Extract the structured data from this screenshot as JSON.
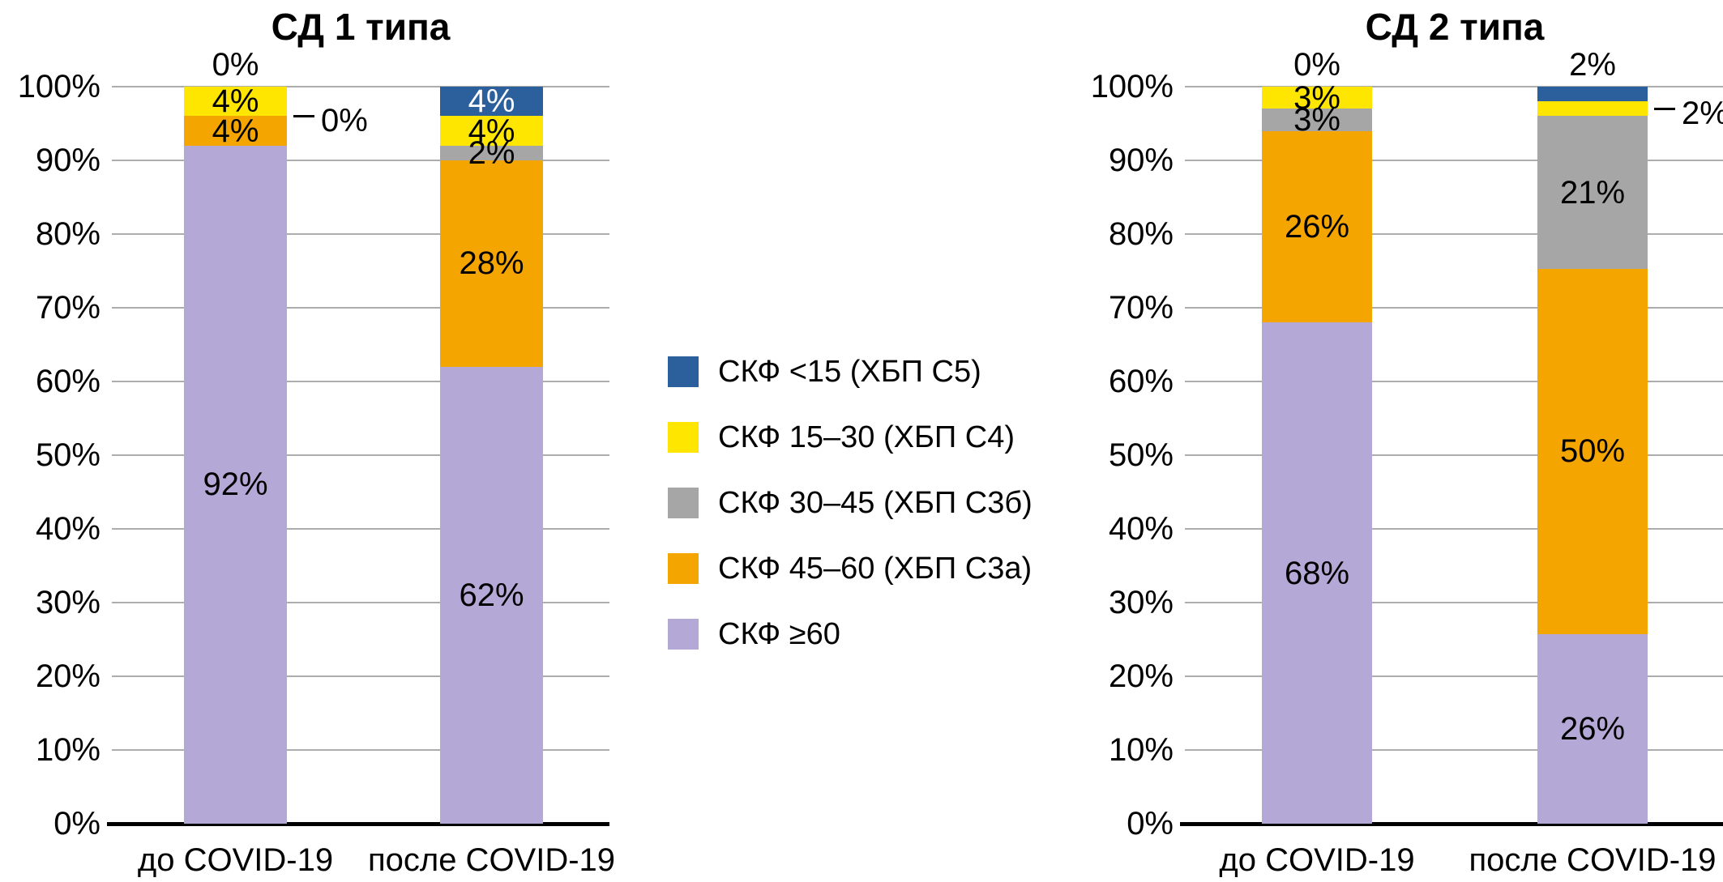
{
  "colors": {
    "blue": "#2B609D",
    "yellow": "#FFE600",
    "gray": "#A6A6A6",
    "orange": "#F5A500",
    "purple": "#B4A8D6",
    "gridline": "#ADADAD",
    "axis": "#000000",
    "label_dark": "#000000",
    "label_light": "#FFFFFF"
  },
  "y_axis": {
    "tick_labels": [
      "100%",
      "90%",
      "80%",
      "70%",
      "60%",
      "50%",
      "40%",
      "30%",
      "20%",
      "10%",
      "0%"
    ]
  },
  "legend": {
    "position": "center-between-charts",
    "items": [
      {
        "label": "СКФ <15 (ХБП С5)",
        "color_key": "blue"
      },
      {
        "label": "СКФ 15–30 (ХБП С4)",
        "color_key": "yellow"
      },
      {
        "label": "СКФ 30–45 (ХБП С3б)",
        "color_key": "gray"
      },
      {
        "label": "СКФ 45–60 (ХБП С3а)",
        "color_key": "orange"
      },
      {
        "label": "СКФ ≥60",
        "color_key": "purple"
      }
    ]
  },
  "chart_data": [
    {
      "type": "bar",
      "stacked": true,
      "title": "СД 1 типа",
      "categories": [
        "до COVID-19",
        "после COVID-19"
      ],
      "ylim": [
        0,
        100
      ],
      "grid": true,
      "series": [
        {
          "name": "СКФ ≥60",
          "color_key": "purple",
          "values": [
            92,
            62
          ]
        },
        {
          "name": "СКФ 45–60 (ХБП С3а)",
          "color_key": "orange",
          "values": [
            4,
            28
          ]
        },
        {
          "name": "СКФ 30–45 (ХБП С3б)",
          "color_key": "gray",
          "values": [
            0,
            2
          ]
        },
        {
          "name": "СКФ 15–30 (ХБП С4)",
          "color_key": "yellow",
          "values": [
            4,
            4
          ]
        },
        {
          "name": "СКФ <15 (ХБП С5)",
          "color_key": "blue",
          "values": [
            0,
            4
          ]
        }
      ],
      "bars": [
        {
          "category": "до COVID-19",
          "segments": [
            {
              "series": "СКФ ≥60",
              "color_key": "purple",
              "value": 92,
              "label": "92%",
              "label_placement": "inside",
              "label_color": "dark"
            },
            {
              "series": "СКФ 45–60 (ХБП С3а)",
              "color_key": "orange",
              "value": 4,
              "label": "4%",
              "label_placement": "inside",
              "label_color": "dark"
            },
            {
              "series": "СКФ 30–45 (ХБП С3б)",
              "color_key": "gray",
              "value": 0,
              "label": "0%",
              "label_placement": "callout-right",
              "label_color": "dark"
            },
            {
              "series": "СКФ 15–30 (ХБП С4)",
              "color_key": "yellow",
              "value": 4,
              "label": "4%",
              "label_placement": "inside",
              "label_color": "dark"
            },
            {
              "series": "СКФ <15 (ХБП С5)",
              "color_key": "blue",
              "value": 0,
              "label": "0%",
              "label_placement": "above",
              "label_color": "dark"
            }
          ]
        },
        {
          "category": "после COVID-19",
          "segments": [
            {
              "series": "СКФ ≥60",
              "color_key": "purple",
              "value": 62,
              "label": "62%",
              "label_placement": "inside",
              "label_color": "dark"
            },
            {
              "series": "СКФ 45–60 (ХБП С3а)",
              "color_key": "orange",
              "value": 28,
              "label": "28%",
              "label_placement": "inside",
              "label_color": "dark"
            },
            {
              "series": "СКФ 30–45 (ХБП С3б)",
              "color_key": "gray",
              "value": 2,
              "label": "2%",
              "label_placement": "inside",
              "label_color": "dark"
            },
            {
              "series": "СКФ 15–30 (ХБП С4)",
              "color_key": "yellow",
              "value": 4,
              "label": "4%",
              "label_placement": "inside",
              "label_color": "dark"
            },
            {
              "series": "СКФ <15 (ХБП С5)",
              "color_key": "blue",
              "value": 4,
              "label": "4%",
              "label_placement": "inside",
              "label_color": "light"
            }
          ]
        }
      ]
    },
    {
      "type": "bar",
      "stacked": true,
      "title": "СД 2 типа",
      "categories": [
        "до COVID-19",
        "после COVID-19"
      ],
      "ylim": [
        0,
        100
      ],
      "grid": true,
      "series": [
        {
          "name": "СКФ ≥60",
          "color_key": "purple",
          "values": [
            68,
            26
          ]
        },
        {
          "name": "СКФ 45–60 (ХБП С3а)",
          "color_key": "orange",
          "values": [
            26,
            50
          ]
        },
        {
          "name": "СКФ 30–45 (ХБП С3б)",
          "color_key": "gray",
          "values": [
            3,
            21
          ]
        },
        {
          "name": "СКФ 15–30 (ХБП С4)",
          "color_key": "yellow",
          "values": [
            3,
            2
          ]
        },
        {
          "name": "СКФ <15 (ХБП С5)",
          "color_key": "blue",
          "values": [
            0,
            2
          ]
        }
      ],
      "bars": [
        {
          "category": "до COVID-19",
          "segments": [
            {
              "series": "СКФ ≥60",
              "color_key": "purple",
              "value": 68,
              "label": "68%",
              "label_placement": "inside",
              "label_color": "dark"
            },
            {
              "series": "СКФ 45–60 (ХБП С3а)",
              "color_key": "orange",
              "value": 26,
              "label": "26%",
              "label_placement": "inside",
              "label_color": "dark"
            },
            {
              "series": "СКФ 30–45 (ХБП С3б)",
              "color_key": "gray",
              "value": 3,
              "label": "3%",
              "label_placement": "inside",
              "label_color": "dark"
            },
            {
              "series": "СКФ 15–30 (ХБП С4)",
              "color_key": "yellow",
              "value": 3,
              "label": "3%",
              "label_placement": "inside",
              "label_color": "dark"
            },
            {
              "series": "СКФ <15 (ХБП С5)",
              "color_key": "blue",
              "value": 0,
              "label": "0%",
              "label_placement": "above",
              "label_color": "dark"
            }
          ]
        },
        {
          "category": "после COVID-19",
          "segments": [
            {
              "series": "СКФ ≥60",
              "color_key": "purple",
              "value": 26,
              "label": "26%",
              "label_placement": "inside",
              "label_color": "dark"
            },
            {
              "series": "СКФ 45–60 (ХБП С3а)",
              "color_key": "orange",
              "value": 50,
              "label": "50%",
              "label_placement": "inside",
              "label_color": "dark"
            },
            {
              "series": "СКФ 30–45 (ХБП С3б)",
              "color_key": "gray",
              "value": 21,
              "label": "21%",
              "label_placement": "inside",
              "label_color": "dark"
            },
            {
              "series": "СКФ 15–30 (ХБП С4)",
              "color_key": "yellow",
              "value": 2,
              "label": "2%",
              "label_placement": "callout-right",
              "label_color": "dark"
            },
            {
              "series": "СКФ <15 (ХБП С5)",
              "color_key": "blue",
              "value": 2,
              "label": "2%",
              "label_placement": "above",
              "label_color": "dark"
            }
          ]
        }
      ]
    }
  ]
}
